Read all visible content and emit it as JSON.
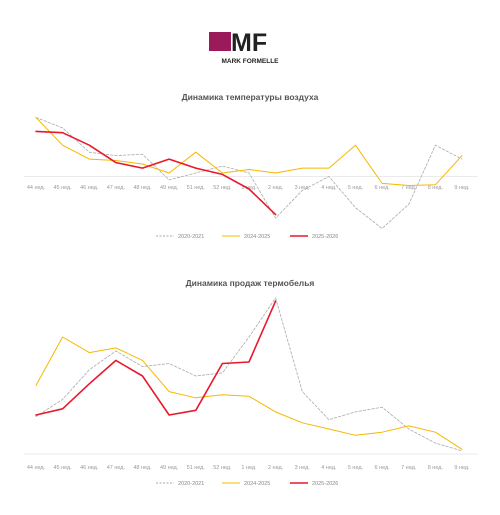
{
  "logo": {
    "mark": "MF",
    "name": "MARK FORMELLE",
    "mark_color": "#9b1b5a",
    "text_color": "#222222"
  },
  "chart_data": [
    {
      "type": "line",
      "title": "Динамика температуры воздуха",
      "categories": [
        "44 нед.",
        "45 нед.",
        "46 нед.",
        "47 нед.",
        "48 нед.",
        "49 нед.",
        "51 нед.",
        "52 нед.",
        "1 нед.",
        "2 нед.",
        "3 нед.",
        "4 нед.",
        "5 нед.",
        "6 нед.",
        "7 нед.",
        "8 нед.",
        "9 нед."
      ],
      "ylim": [
        -8,
        9
      ],
      "grid": false,
      "legend_placement": "bottom",
      "series": [
        {
          "name": "2020-2021",
          "color": "#aaaaaa",
          "style": "dashed",
          "values": [
            8.5,
            7.0,
            3.5,
            3.0,
            3.2,
            -0.5,
            0.5,
            1.5,
            0.5,
            -6.0,
            -2.0,
            0.0,
            -4.5,
            -7.5,
            -4.0,
            4.5,
            2.5
          ]
        },
        {
          "name": "2024-2025",
          "color": "#f5b800",
          "style": "solid",
          "values": [
            8.5,
            4.5,
            2.5,
            2.3,
            1.8,
            0.5,
            3.5,
            0.5,
            1.0,
            0.5,
            1.2,
            1.2,
            4.5,
            -1.0,
            -1.3,
            -1.2,
            3.0
          ]
        },
        {
          "name": "2025-2026",
          "color": "#e8192c",
          "style": "solid",
          "values": [
            6.5,
            6.3,
            4.5,
            2.0,
            1.2,
            2.5,
            1.2,
            0.3,
            -1.8,
            -5.5,
            null,
            null,
            null,
            null,
            null,
            null,
            null
          ]
        }
      ]
    },
    {
      "type": "line",
      "title": "Динамика продаж термобелья",
      "categories": [
        "44 нед.",
        "45 нед.",
        "46 нед.",
        "47 нед.",
        "48 нед.",
        "49 нед.",
        "51 нед.",
        "52 нед.",
        "1 нед.",
        "2 нед.",
        "3 нед.",
        "4 нед.",
        "5 нед.",
        "6 нед.",
        "7 нед.",
        "8 нед.",
        "9 нед."
      ],
      "ylim": [
        0,
        100
      ],
      "grid": false,
      "legend_placement": "bottom",
      "series": [
        {
          "name": "2020-2021",
          "color": "#aaaaaa",
          "style": "dashed",
          "values": [
            24,
            35,
            54,
            66,
            56,
            58,
            50,
            52,
            75,
            100,
            40,
            22,
            27,
            30,
            16,
            7,
            2
          ]
        },
        {
          "name": "2024-2025",
          "color": "#f5b800",
          "style": "solid",
          "values": [
            44,
            75,
            65,
            68,
            60,
            40,
            36,
            38,
            37,
            27,
            20,
            16,
            12,
            14,
            18,
            14,
            3
          ]
        },
        {
          "name": "2025-2026",
          "color": "#e8192c",
          "style": "solid",
          "values": [
            25,
            29,
            45,
            60,
            50,
            25,
            28,
            58,
            59,
            98,
            null,
            null,
            null,
            null,
            null,
            null,
            null
          ]
        }
      ]
    }
  ]
}
